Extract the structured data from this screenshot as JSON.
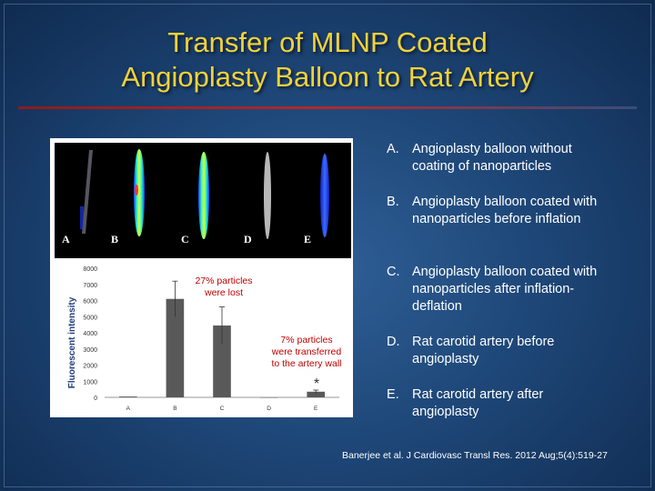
{
  "slide": {
    "title_line1": "Transfer of MLNP Coated",
    "title_line2": "Angioplasty Balloon to Rat Artery",
    "citation": "Banerjee et al. J Cardiovasc Transl Res. 2012 Aug;5(4):519-27"
  },
  "figure": {
    "lane_labels": [
      "A",
      "B",
      "C",
      "D",
      "E"
    ],
    "annotations": {
      "lost_line1": "27% particles",
      "lost_line2": "were lost",
      "transfer_line1": "7% particles",
      "transfer_line2": "were transferred",
      "transfer_line3": "to the artery wall",
      "significance": "*"
    }
  },
  "list_items": [
    {
      "letter": "A.",
      "text": "Angioplasty balloon without coating of nanoparticles"
    },
    {
      "letter": "B.",
      "text": "Angioplasty balloon coated with nanoparticles before inflation"
    },
    {
      "letter": "C.",
      "text": "Angioplasty balloon coated with nanoparticles after inflation-deflation"
    },
    {
      "letter": "D.",
      "text": "Rat carotid artery before angioplasty"
    },
    {
      "letter": "E.",
      "text": "Rat carotid artery after angioplasty"
    }
  ],
  "chart_data": {
    "type": "bar",
    "categories": [
      "A",
      "B",
      "C",
      "D",
      "E"
    ],
    "values": [
      50,
      6100,
      4450,
      0,
      350
    ],
    "errors": [
      0,
      1100,
      1150,
      0,
      100
    ],
    "ylabel": "Fluorescent intensity",
    "ylim": [
      0,
      8000
    ],
    "yticks": [
      0,
      1000,
      2000,
      3000,
      4000,
      5000,
      6000,
      7000,
      8000
    ],
    "bar_color": "#595959"
  }
}
